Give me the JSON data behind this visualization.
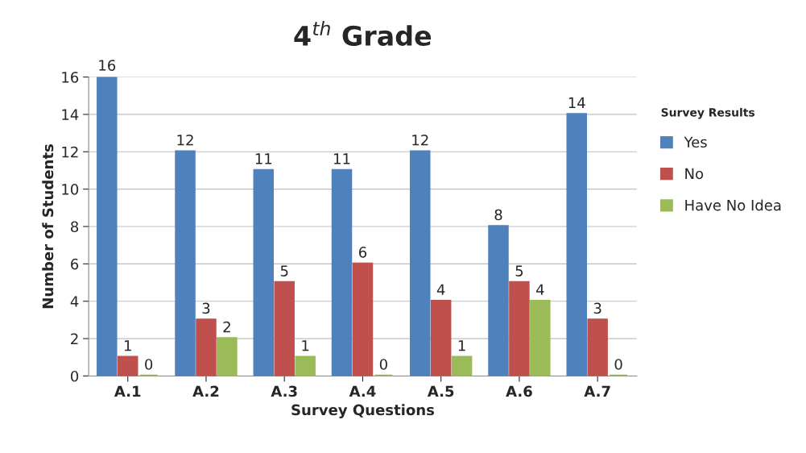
{
  "chart_data": {
    "type": "bar",
    "title": "4$^{th}$ Grade",
    "xlabel": "Survey Questions",
    "ylabel": "Number of Students",
    "legend_title": "Survey Results",
    "categories": [
      "A.1",
      "A.2",
      "A.3",
      "A.4",
      "A.5",
      "A.6",
      "A.7"
    ],
    "series": [
      {
        "name": "Yes",
        "color": "#4f81bd",
        "values": [
          16,
          12,
          11,
          11,
          12,
          8,
          14
        ]
      },
      {
        "name": "No",
        "color": "#c0504d",
        "values": [
          1,
          3,
          5,
          6,
          4,
          5,
          3
        ]
      },
      {
        "name": "Have No Idea",
        "color": "#9bbb59",
        "values": [
          0,
          2,
          1,
          0,
          1,
          4,
          0
        ]
      }
    ],
    "ylim": [
      0,
      16
    ],
    "yticks": [
      0,
      2,
      4,
      6,
      8,
      10,
      12,
      14,
      16
    ],
    "grid": "y",
    "legend": "right",
    "data_labels": true
  }
}
